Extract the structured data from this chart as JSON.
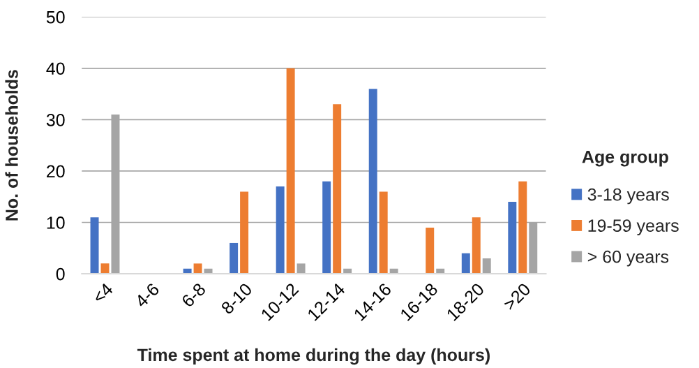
{
  "chart_data": {
    "type": "bar",
    "xlabel": "Time spent at home during the day (hours)",
    "ylabel": "No. of households",
    "legend_title": "Age group",
    "categories": [
      "<4",
      "4-6",
      "6-8",
      "8-10",
      "10-12",
      "12-14",
      "14-16",
      "16-18",
      "18-20",
      ">20"
    ],
    "series": [
      {
        "name": "3-18 years",
        "color": "#4472c4",
        "values": [
          11,
          0,
          1,
          6,
          17,
          18,
          36,
          0,
          4,
          14
        ]
      },
      {
        "name": "19-59 years",
        "color": "#ed7d31",
        "values": [
          2,
          0,
          2,
          16,
          40,
          33,
          16,
          9,
          11,
          18
        ]
      },
      {
        "name": "> 60 years",
        "color": "#a5a5a5",
        "values": [
          31,
          0,
          1,
          0,
          2,
          1,
          1,
          1,
          3,
          10
        ]
      }
    ],
    "ylim": [
      0,
      50
    ],
    "yticks": [
      0,
      10,
      20,
      30,
      40,
      50
    ],
    "grid": "y",
    "legend": "right"
  }
}
